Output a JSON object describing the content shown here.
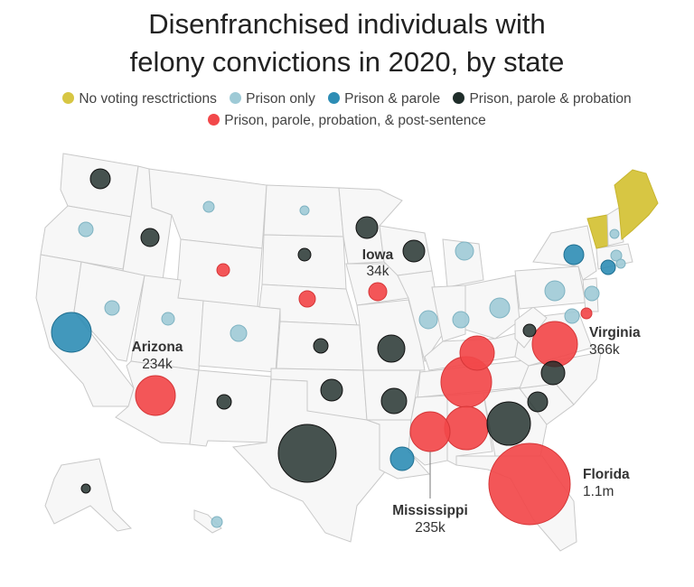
{
  "title_lines": [
    "Disenfranchised individuals with",
    "felony convictions in 2020, by state"
  ],
  "legend": [
    {
      "key": "none",
      "label": "No voting resctrictions",
      "color": "#d7c643"
    },
    {
      "key": "prison",
      "label": "Prison only",
      "color": "#9ecad6"
    },
    {
      "key": "parole",
      "label": "Prison & parole",
      "color": "#2d8db5"
    },
    {
      "key": "probation",
      "label": "Prison, parole & probation",
      "color": "#1f2d2a"
    },
    {
      "key": "post",
      "label": "Prison, parole, probation, & post-sentence",
      "color": "#f2484a"
    }
  ],
  "no_restriction_states": [
    "Maine",
    "Vermont"
  ],
  "callouts": [
    {
      "name": "Iowa",
      "value": "34k"
    },
    {
      "name": "Arizona",
      "value": "234k"
    },
    {
      "name": "Virginia",
      "value": "366k"
    },
    {
      "name": "Florida",
      "value": "1.1m"
    },
    {
      "name": "Mississippi",
      "value": "235k"
    }
  ],
  "bubbles": [
    {
      "state": "WA",
      "category": "probation"
    },
    {
      "state": "OR",
      "category": "prison"
    },
    {
      "state": "ID",
      "category": "probation"
    },
    {
      "state": "MT",
      "category": "prison"
    },
    {
      "state": "WY",
      "category": "post"
    },
    {
      "state": "NV",
      "category": "prison"
    },
    {
      "state": "UT",
      "category": "prison"
    },
    {
      "state": "CA",
      "category": "parole"
    },
    {
      "state": "AZ",
      "category": "post"
    },
    {
      "state": "CO",
      "category": "prison"
    },
    {
      "state": "NM",
      "category": "probation"
    },
    {
      "state": "ND",
      "category": "prison"
    },
    {
      "state": "SD",
      "category": "probation"
    },
    {
      "state": "NE",
      "category": "post"
    },
    {
      "state": "KS",
      "category": "probation"
    },
    {
      "state": "OK",
      "category": "probation"
    },
    {
      "state": "TX",
      "category": "probation"
    },
    {
      "state": "MN",
      "category": "probation"
    },
    {
      "state": "IA",
      "category": "post"
    },
    {
      "state": "MO",
      "category": "probation"
    },
    {
      "state": "AR",
      "category": "probation"
    },
    {
      "state": "LA",
      "category": "parole"
    },
    {
      "state": "WI",
      "category": "probation"
    },
    {
      "state": "IL",
      "category": "prison"
    },
    {
      "state": "MI",
      "category": "prison"
    },
    {
      "state": "IN",
      "category": "prison"
    },
    {
      "state": "OH",
      "category": "prison"
    },
    {
      "state": "KY",
      "category": "post"
    },
    {
      "state": "TN",
      "category": "post"
    },
    {
      "state": "MS",
      "category": "post"
    },
    {
      "state": "AL",
      "category": "post"
    },
    {
      "state": "GA",
      "category": "probation"
    },
    {
      "state": "FL",
      "category": "post"
    },
    {
      "state": "SC",
      "category": "probation"
    },
    {
      "state": "NC",
      "category": "probation"
    },
    {
      "state": "VA",
      "category": "post"
    },
    {
      "state": "WV",
      "category": "probation"
    },
    {
      "state": "PA",
      "category": "prison"
    },
    {
      "state": "NY",
      "category": "parole"
    },
    {
      "state": "NJ",
      "category": "prison"
    },
    {
      "state": "DE",
      "category": "post"
    },
    {
      "state": "MD",
      "category": "prison"
    },
    {
      "state": "CT",
      "category": "parole"
    },
    {
      "state": "MA",
      "category": "prison"
    },
    {
      "state": "RI",
      "category": "prison"
    },
    {
      "state": "NH",
      "category": "prison"
    },
    {
      "state": "AK",
      "category": "probation"
    },
    {
      "state": "HI",
      "category": "prison"
    }
  ]
}
